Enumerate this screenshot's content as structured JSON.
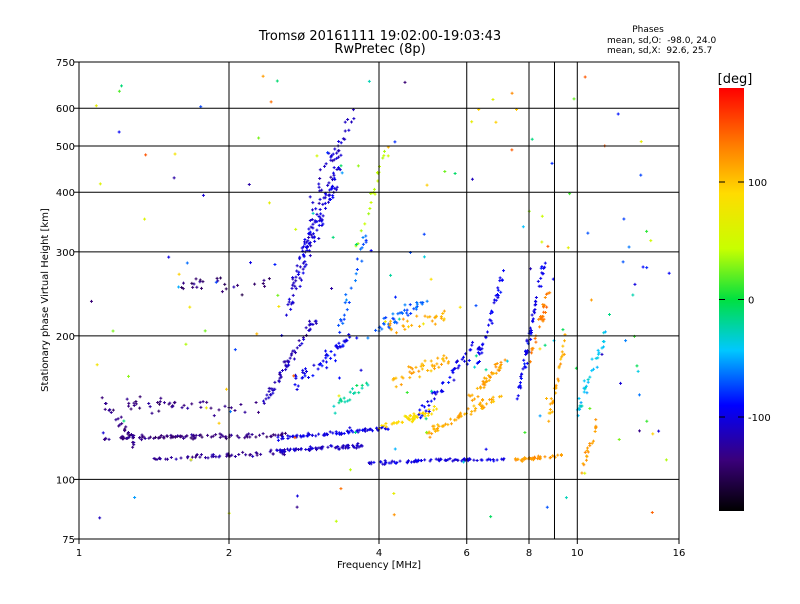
{
  "chart_data": {
    "type": "scatter",
    "title": "Tromsø 20161111 19:02:00-19:03:43",
    "subtitle": "RwPretec (8p)",
    "xlabel": "Frequency [MHz]",
    "ylabel": "Stationary phase Virtual Height [km]",
    "x_scale": "log",
    "y_scale": "log",
    "xlim": [
      1,
      16
    ],
    "ylim": [
      75,
      750
    ],
    "x_ticks": [
      {
        "value": 1,
        "label": "1"
      },
      {
        "value": 2,
        "label": "2"
      },
      {
        "value": 4,
        "label": "4"
      },
      {
        "value": 6,
        "label": "6"
      },
      {
        "value": 8,
        "label": "8"
      },
      {
        "value": 10,
        "label": "10"
      },
      {
        "value": 16,
        "label": "16"
      }
    ],
    "x_gridlines": [
      2,
      4,
      6,
      8,
      9,
      10
    ],
    "y_ticks": [
      {
        "value": 75,
        "label": "75"
      },
      {
        "value": 100,
        "label": "100"
      },
      {
        "value": 200,
        "label": "200"
      },
      {
        "value": 300,
        "label": "300"
      },
      {
        "value": 400,
        "label": "400"
      },
      {
        "value": 500,
        "label": "500"
      },
      {
        "value": 600,
        "label": "600"
      },
      {
        "value": 750,
        "label": "750"
      }
    ],
    "y_gridlines": [
      100,
      200,
      300,
      400,
      500,
      600
    ],
    "grid": true,
    "stats": {
      "heading": "Phases",
      "line_o": "mean, sd,O:  -98.0, 24.0",
      "line_x": "mean, sd,X:  92.6, 25.7"
    },
    "colorbar": {
      "label": "[deg]",
      "range": [
        -180,
        180
      ],
      "ticks": [
        {
          "value": 100,
          "label": "100"
        },
        {
          "value": 0,
          "label": "0"
        },
        {
          "value": -100,
          "label": "-100"
        }
      ],
      "stops": [
        {
          "pos": 0.0,
          "color": "#000000"
        },
        {
          "pos": 0.12,
          "color": "#3a007a"
        },
        {
          "pos": 0.25,
          "color": "#0000ff"
        },
        {
          "pos": 0.38,
          "color": "#00c8ff"
        },
        {
          "pos": 0.5,
          "color": "#00e040"
        },
        {
          "pos": 0.62,
          "color": "#c8ff00"
        },
        {
          "pos": 0.75,
          "color": "#ffdc00"
        },
        {
          "pos": 0.87,
          "color": "#ff7800"
        },
        {
          "pos": 1.0,
          "color": "#ff0000"
        }
      ]
    },
    "traces": [
      {
        "x0": 1.1,
        "x1": 2.6,
        "y0": 122,
        "y1": 124,
        "phase": -135,
        "n": 110,
        "spread": 0.015
      },
      {
        "x0": 1.4,
        "x1": 2.6,
        "y0": 110,
        "y1": 114,
        "phase": -125,
        "n": 55,
        "spread": 0.02
      },
      {
        "x0": 1.25,
        "x1": 2.3,
        "y0": 145,
        "y1": 140,
        "phase": -135,
        "n": 45,
        "spread": 0.05
      },
      {
        "x0": 1.1,
        "x1": 1.3,
        "y0": 150,
        "y1": 118,
        "phase": -135,
        "n": 30,
        "spread": 0.04
      },
      {
        "x0": 1.6,
        "x1": 2.5,
        "y0": 260,
        "y1": 250,
        "phase": -140,
        "n": 25,
        "spread": 0.08
      },
      {
        "x0": 2.5,
        "x1": 3.8,
        "y0": 115,
        "y1": 118,
        "phase": -110,
        "n": 70,
        "spread": 0.015
      },
      {
        "x0": 2.5,
        "x1": 4.2,
        "y0": 122,
        "y1": 128,
        "phase": -100,
        "n": 80,
        "spread": 0.015
      },
      {
        "x0": 2.3,
        "x1": 3.0,
        "y0": 140,
        "y1": 220,
        "phase": -115,
        "n": 60,
        "spread": 0.05
      },
      {
        "x0": 2.6,
        "x1": 3.4,
        "y0": 230,
        "y1": 500,
        "phase": -108,
        "n": 90,
        "spread": 0.12
      },
      {
        "x0": 2.8,
        "x1": 3.3,
        "y0": 300,
        "y1": 420,
        "phase": -100,
        "n": 50,
        "spread": 0.08
      },
      {
        "x0": 2.9,
        "x1": 3.6,
        "y0": 380,
        "y1": 600,
        "phase": -110,
        "n": 30,
        "spread": 0.1
      },
      {
        "x0": 2.7,
        "x1": 3.6,
        "y0": 160,
        "y1": 200,
        "phase": -95,
        "n": 50,
        "spread": 0.06
      },
      {
        "x0": 3.3,
        "x1": 3.8,
        "y0": 200,
        "y1": 330,
        "phase": -70,
        "n": 25,
        "spread": 0.08
      },
      {
        "x0": 3.2,
        "x1": 3.8,
        "y0": 140,
        "y1": 160,
        "phase": -20,
        "n": 20,
        "spread": 0.05
      },
      {
        "x0": 3.6,
        "x1": 4.2,
        "y0": 300,
        "y1": 520,
        "phase": 40,
        "n": 20,
        "spread": 0.1
      },
      {
        "x0": 3.8,
        "x1": 5.2,
        "y0": 108,
        "y1": 110,
        "phase": -100,
        "n": 40,
        "spread": 0.012
      },
      {
        "x0": 4.0,
        "x1": 5.2,
        "y0": 128,
        "y1": 140,
        "phase": 90,
        "n": 50,
        "spread": 0.03
      },
      {
        "x0": 4.2,
        "x1": 5.5,
        "y0": 160,
        "y1": 180,
        "phase": 110,
        "n": 40,
        "spread": 0.05
      },
      {
        "x0": 3.8,
        "x1": 5.0,
        "y0": 200,
        "y1": 240,
        "phase": -70,
        "n": 40,
        "spread": 0.05
      },
      {
        "x0": 4.2,
        "x1": 5.6,
        "y0": 210,
        "y1": 220,
        "phase": 110,
        "n": 30,
        "spread": 0.05
      },
      {
        "x0": 4.8,
        "x1": 6.2,
        "y0": 135,
        "y1": 190,
        "phase": -95,
        "n": 45,
        "spread": 0.05
      },
      {
        "x0": 5.0,
        "x1": 7.0,
        "y0": 125,
        "y1": 150,
        "phase": 110,
        "n": 60,
        "spread": 0.03
      },
      {
        "x0": 6.0,
        "x1": 7.2,
        "y0": 145,
        "y1": 180,
        "phase": 115,
        "n": 40,
        "spread": 0.04
      },
      {
        "x0": 5.2,
        "x1": 7.2,
        "y0": 110,
        "y1": 110,
        "phase": -105,
        "n": 40,
        "spread": 0.012
      },
      {
        "x0": 6.2,
        "x1": 7.2,
        "y0": 170,
        "y1": 280,
        "phase": -95,
        "n": 40,
        "spread": 0.06
      },
      {
        "x0": 7.5,
        "x1": 9.3,
        "y0": 110,
        "y1": 112,
        "phase": 120,
        "n": 40,
        "spread": 0.012
      },
      {
        "x0": 7.6,
        "x1": 8.6,
        "y0": 150,
        "y1": 290,
        "phase": -95,
        "n": 60,
        "spread": 0.08
      },
      {
        "x0": 8.0,
        "x1": 8.8,
        "y0": 180,
        "y1": 250,
        "phase": 130,
        "n": 30,
        "spread": 0.06
      },
      {
        "x0": 8.8,
        "x1": 9.5,
        "y0": 135,
        "y1": 200,
        "phase": 110,
        "n": 30,
        "spread": 0.06
      },
      {
        "x0": 10.0,
        "x1": 11.5,
        "y0": 140,
        "y1": 205,
        "phase": -40,
        "n": 35,
        "spread": 0.07
      },
      {
        "x0": 10.2,
        "x1": 11.0,
        "y0": 105,
        "y1": 130,
        "phase": 120,
        "n": 20,
        "spread": 0.06
      }
    ],
    "scatter": {
      "n": 170,
      "x_range": [
        1.05,
        15.5
      ],
      "y_range": [
        80,
        700
      ],
      "phase_range": [
        -140,
        150
      ]
    }
  }
}
